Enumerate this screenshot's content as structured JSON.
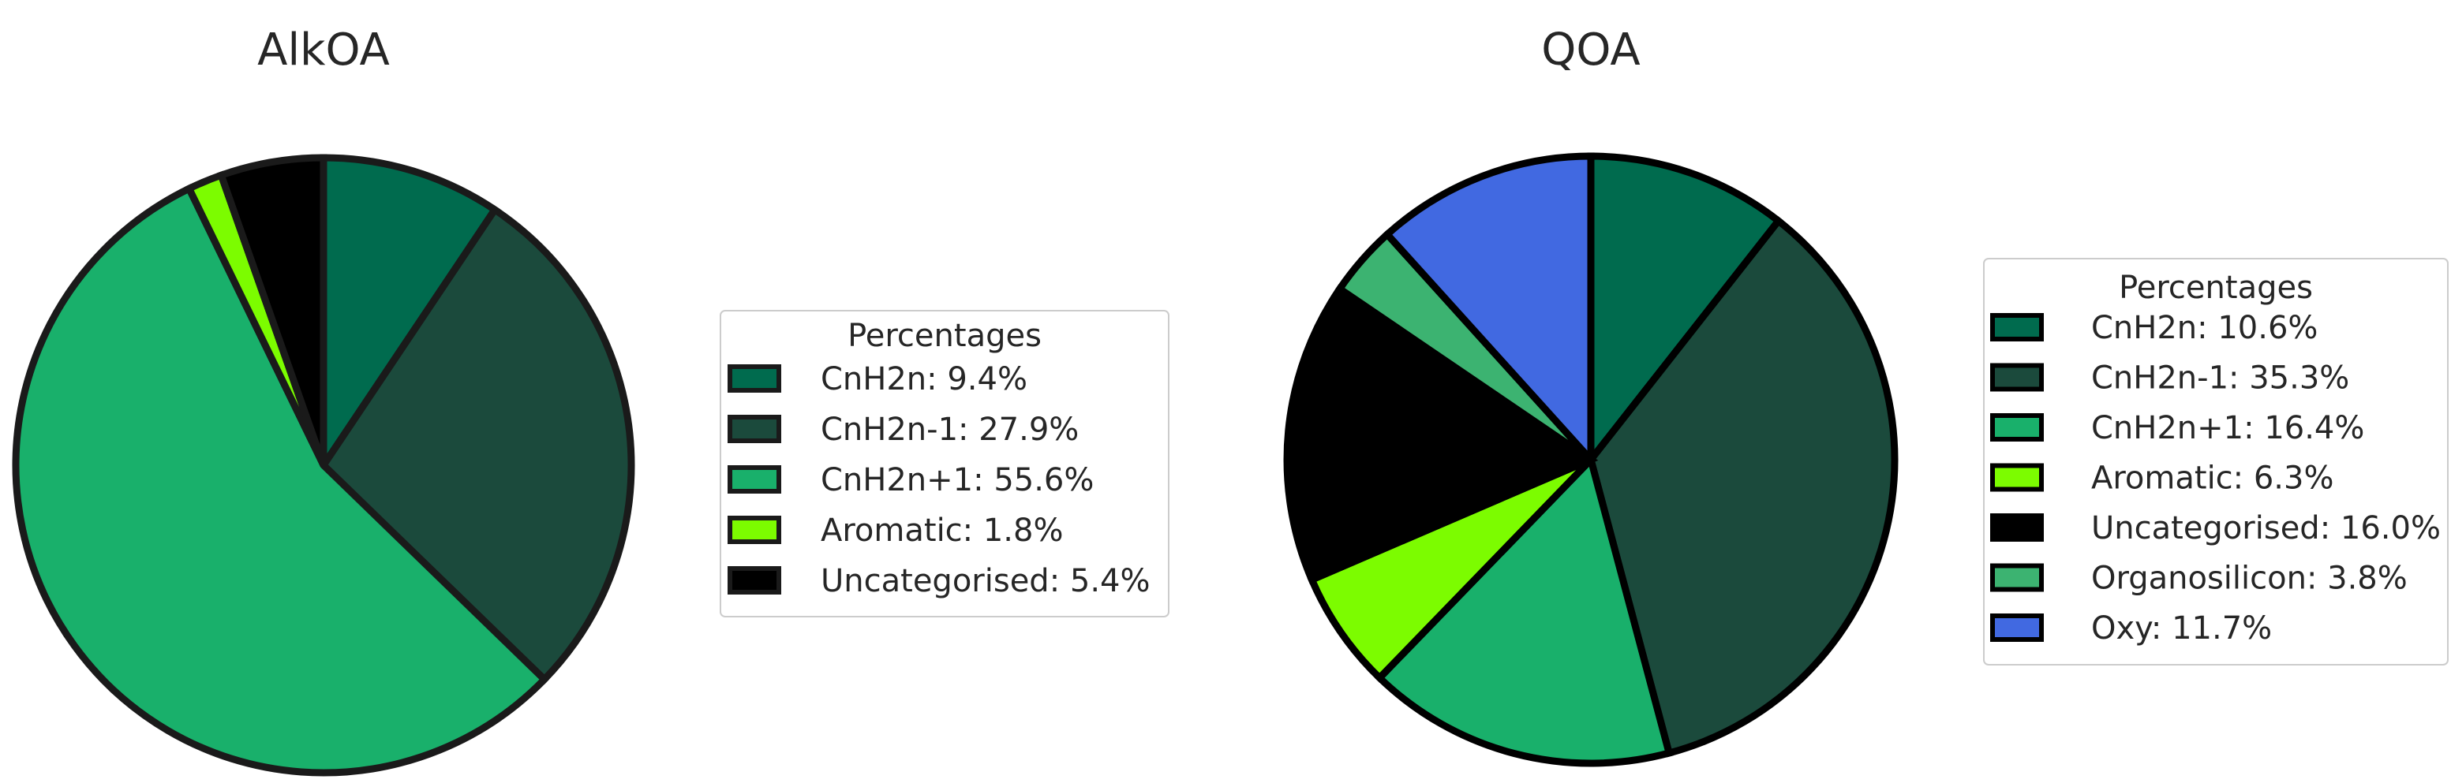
{
  "chart_data": [
    {
      "type": "pie",
      "title": "AlkOA",
      "legend_title": "Percentages",
      "legend_placement": "right",
      "start_angle": 90,
      "direction": "clockwise",
      "edge_color": "#1a1a1a",
      "slices": [
        {
          "label": "CnH2n: 9.4%",
          "name": "CnH2n",
          "value": 9.4,
          "color": "#006B4E"
        },
        {
          "label": "CnH2n-1: 27.9%",
          "name": "CnH2n-1",
          "value": 27.9,
          "color": "#1B4A3C"
        },
        {
          "label": "CnH2n+1: 55.6%",
          "name": "CnH2n+1",
          "value": 55.6,
          "color": "#19B06B"
        },
        {
          "label": "Aromatic: 1.8%",
          "name": "Aromatic",
          "value": 1.8,
          "color": "#7CFC00"
        },
        {
          "label": "Uncategorised: 5.4%",
          "name": "Uncategorised",
          "value": 5.4,
          "color": "#000000"
        }
      ]
    },
    {
      "type": "pie",
      "title": "QOA",
      "legend_title": "Percentages",
      "legend_placement": "right",
      "start_angle": 90,
      "direction": "clockwise",
      "edge_color": "#000000",
      "slices": [
        {
          "label": "CnH2n: 10.6%",
          "name": "CnH2n",
          "value": 10.6,
          "color": "#006B4E"
        },
        {
          "label": "CnH2n-1: 35.3%",
          "name": "CnH2n-1",
          "value": 35.3,
          "color": "#1B4A3C"
        },
        {
          "label": "CnH2n+1: 16.4%",
          "name": "CnH2n+1",
          "value": 16.4,
          "color": "#19B06B"
        },
        {
          "label": "Aromatic: 6.3%",
          "name": "Aromatic",
          "value": 6.3,
          "color": "#7CFC00"
        },
        {
          "label": "Uncategorised: 16.0%",
          "name": "Uncategorised",
          "value": 16.0,
          "color": "#000000"
        },
        {
          "label": "Organosilicon: 3.8%",
          "name": "Organosilicon",
          "value": 3.8,
          "color": "#3CB371"
        },
        {
          "label": "Oxy: 11.7%",
          "name": "Oxy",
          "value": 11.7,
          "color": "#4169E1"
        }
      ]
    }
  ]
}
